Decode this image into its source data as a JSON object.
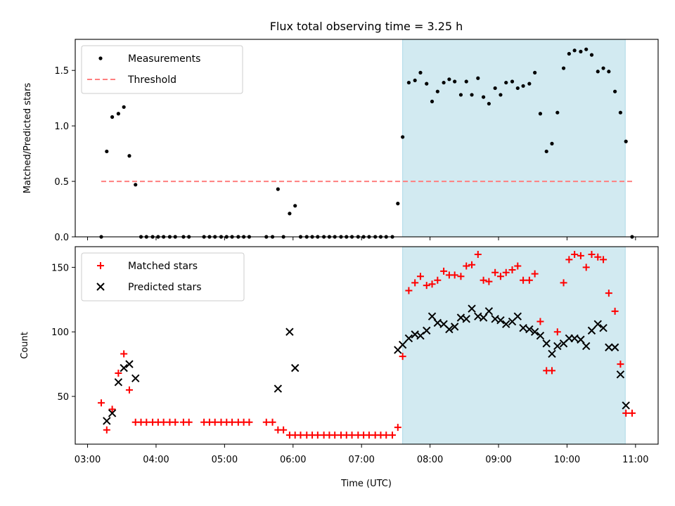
{
  "title": "Flux total observing time = 3.25 h",
  "xlabel": "Time (UTC)",
  "x_tick_labels": [
    "03:00",
    "04:00",
    "05:00",
    "06:00",
    "07:00",
    "08:00",
    "09:00",
    "10:00",
    "11:00"
  ],
  "x_tick_values": [
    3.0,
    4.0,
    5.0,
    6.0,
    7.0,
    8.0,
    9.0,
    10.0,
    11.0
  ],
  "xlim": [
    2.82,
    11.33
  ],
  "colors": {
    "highlight": "#add8e6",
    "measurement": "#000000",
    "threshold": "#ff7f7f",
    "matched": "#ff0000",
    "predicted": "#000000"
  },
  "chart_data": [
    {
      "type": "scatter",
      "ylabel": "Matched/Predicted stars",
      "ylim": [
        0,
        1.78
      ],
      "y_tick_values": [
        0.0,
        0.5,
        1.0,
        1.5
      ],
      "y_tick_labels": [
        "0.0",
        "0.5",
        "1.0",
        "1.5"
      ],
      "legend_position": "upper-left",
      "highlight_span": [
        7.6,
        10.85
      ],
      "series": [
        {
          "name": "Measurements",
          "marker": "dot",
          "points": [
            [
              3.2,
              0.0
            ],
            [
              3.28,
              0.77
            ],
            [
              3.36,
              1.08
            ],
            [
              3.45,
              1.11
            ],
            [
              3.53,
              1.17
            ],
            [
              3.61,
              0.73
            ],
            [
              3.7,
              0.47
            ],
            [
              3.78,
              0.0
            ],
            [
              3.86,
              0.0
            ],
            [
              3.95,
              0.0
            ],
            [
              4.03,
              0.0
            ],
            [
              4.11,
              0.0
            ],
            [
              4.2,
              0.0
            ],
            [
              4.28,
              0.0
            ],
            [
              4.4,
              0.0
            ],
            [
              4.48,
              0.0
            ],
            [
              4.7,
              0.0
            ],
            [
              4.78,
              0.0
            ],
            [
              4.86,
              0.0
            ],
            [
              4.95,
              0.0
            ],
            [
              5.03,
              0.0
            ],
            [
              5.11,
              0.0
            ],
            [
              5.2,
              0.0
            ],
            [
              5.28,
              0.0
            ],
            [
              5.36,
              0.0
            ],
            [
              5.61,
              0.0
            ],
            [
              5.7,
              0.0
            ],
            [
              5.78,
              0.43
            ],
            [
              5.86,
              0.0
            ],
            [
              5.95,
              0.21
            ],
            [
              6.03,
              0.28
            ],
            [
              6.11,
              0.0
            ],
            [
              6.2,
              0.0
            ],
            [
              6.28,
              0.0
            ],
            [
              6.36,
              0.0
            ],
            [
              6.45,
              0.0
            ],
            [
              6.53,
              0.0
            ],
            [
              6.61,
              0.0
            ],
            [
              6.7,
              0.0
            ],
            [
              6.78,
              0.0
            ],
            [
              6.86,
              0.0
            ],
            [
              6.95,
              0.0
            ],
            [
              7.03,
              0.0
            ],
            [
              7.11,
              0.0
            ],
            [
              7.2,
              0.0
            ],
            [
              7.28,
              0.0
            ],
            [
              7.36,
              0.0
            ],
            [
              7.45,
              0.0
            ],
            [
              7.53,
              0.3
            ],
            [
              7.6,
              0.9
            ],
            [
              7.69,
              1.39
            ],
            [
              7.78,
              1.41
            ],
            [
              7.86,
              1.48
            ],
            [
              7.95,
              1.38
            ],
            [
              8.03,
              1.22
            ],
            [
              8.11,
              1.31
            ],
            [
              8.2,
              1.39
            ],
            [
              8.28,
              1.42
            ],
            [
              8.36,
              1.4
            ],
            [
              8.45,
              1.28
            ],
            [
              8.53,
              1.4
            ],
            [
              8.61,
              1.28
            ],
            [
              8.7,
              1.43
            ],
            [
              8.78,
              1.26
            ],
            [
              8.86,
              1.2
            ],
            [
              8.95,
              1.34
            ],
            [
              9.03,
              1.28
            ],
            [
              9.11,
              1.39
            ],
            [
              9.2,
              1.4
            ],
            [
              9.28,
              1.34
            ],
            [
              9.36,
              1.36
            ],
            [
              9.45,
              1.38
            ],
            [
              9.53,
              1.48
            ],
            [
              9.61,
              1.11
            ],
            [
              9.7,
              0.77
            ],
            [
              9.78,
              0.84
            ],
            [
              9.86,
              1.12
            ],
            [
              9.95,
              1.52
            ],
            [
              10.03,
              1.65
            ],
            [
              10.11,
              1.68
            ],
            [
              10.2,
              1.67
            ],
            [
              10.28,
              1.69
            ],
            [
              10.36,
              1.64
            ],
            [
              10.45,
              1.49
            ],
            [
              10.53,
              1.52
            ],
            [
              10.61,
              1.49
            ],
            [
              10.7,
              1.31
            ],
            [
              10.78,
              1.12
            ],
            [
              10.86,
              0.86
            ],
            [
              10.95,
              0.0
            ]
          ]
        },
        {
          "name": "Threshold",
          "style": "dashed",
          "points": [
            [
              3.2,
              0.5
            ],
            [
              10.95,
              0.5
            ]
          ]
        }
      ]
    },
    {
      "type": "scatter",
      "ylabel": "Count",
      "ylim": [
        13,
        166
      ],
      "y_tick_values": [
        50,
        100,
        150
      ],
      "y_tick_labels": [
        "50",
        "100",
        "150"
      ],
      "legend_position": "upper-left",
      "highlight_span": [
        7.6,
        10.85
      ],
      "series": [
        {
          "name": "Matched stars",
          "marker": "plus",
          "points": [
            [
              3.2,
              45
            ],
            [
              3.28,
              24
            ],
            [
              3.36,
              40
            ],
            [
              3.45,
              68
            ],
            [
              3.53,
              83
            ],
            [
              3.61,
              55
            ],
            [
              3.7,
              30
            ],
            [
              3.78,
              30
            ],
            [
              3.86,
              30
            ],
            [
              3.95,
              30
            ],
            [
              4.03,
              30
            ],
            [
              4.11,
              30
            ],
            [
              4.2,
              30
            ],
            [
              4.28,
              30
            ],
            [
              4.4,
              30
            ],
            [
              4.48,
              30
            ],
            [
              4.7,
              30
            ],
            [
              4.78,
              30
            ],
            [
              4.86,
              30
            ],
            [
              4.95,
              30
            ],
            [
              5.03,
              30
            ],
            [
              5.11,
              30
            ],
            [
              5.2,
              30
            ],
            [
              5.28,
              30
            ],
            [
              5.36,
              30
            ],
            [
              5.61,
              30
            ],
            [
              5.7,
              30
            ],
            [
              5.78,
              24
            ],
            [
              5.86,
              24
            ],
            [
              5.95,
              20
            ],
            [
              6.03,
              20
            ],
            [
              6.11,
              20
            ],
            [
              6.2,
              20
            ],
            [
              6.28,
              20
            ],
            [
              6.36,
              20
            ],
            [
              6.45,
              20
            ],
            [
              6.53,
              20
            ],
            [
              6.61,
              20
            ],
            [
              6.7,
              20
            ],
            [
              6.78,
              20
            ],
            [
              6.86,
              20
            ],
            [
              6.95,
              20
            ],
            [
              7.03,
              20
            ],
            [
              7.11,
              20
            ],
            [
              7.2,
              20
            ],
            [
              7.28,
              20
            ],
            [
              7.36,
              20
            ],
            [
              7.45,
              20
            ],
            [
              7.53,
              26
            ],
            [
              7.6,
              81
            ],
            [
              7.69,
              132
            ],
            [
              7.78,
              138
            ],
            [
              7.86,
              143
            ],
            [
              7.95,
              136
            ],
            [
              8.03,
              137
            ],
            [
              8.11,
              140
            ],
            [
              8.2,
              147
            ],
            [
              8.28,
              144
            ],
            [
              8.36,
              144
            ],
            [
              8.45,
              143
            ],
            [
              8.53,
              151
            ],
            [
              8.61,
              152
            ],
            [
              8.7,
              160
            ],
            [
              8.78,
              140
            ],
            [
              8.86,
              139
            ],
            [
              8.95,
              146
            ],
            [
              9.03,
              143
            ],
            [
              9.11,
              146
            ],
            [
              9.2,
              148
            ],
            [
              9.28,
              151
            ],
            [
              9.36,
              140
            ],
            [
              9.45,
              140
            ],
            [
              9.53,
              145
            ],
            [
              9.61,
              108
            ],
            [
              9.7,
              70
            ],
            [
              9.78,
              70
            ],
            [
              9.86,
              100
            ],
            [
              9.95,
              138
            ],
            [
              10.03,
              156
            ],
            [
              10.11,
              160
            ],
            [
              10.2,
              159
            ],
            [
              10.28,
              150
            ],
            [
              10.36,
              160
            ],
            [
              10.45,
              158
            ],
            [
              10.53,
              156
            ],
            [
              10.61,
              130
            ],
            [
              10.7,
              116
            ],
            [
              10.78,
              75
            ],
            [
              10.86,
              37
            ],
            [
              10.95,
              37
            ]
          ]
        },
        {
          "name": "Predicted stars",
          "marker": "x",
          "points": [
            [
              3.28,
              31
            ],
            [
              3.36,
              37
            ],
            [
              3.45,
              61
            ],
            [
              3.53,
              72
            ],
            [
              3.61,
              75
            ],
            [
              3.7,
              64
            ],
            [
              5.78,
              56
            ],
            [
              5.95,
              100
            ],
            [
              6.03,
              72
            ],
            [
              7.53,
              86
            ],
            [
              7.6,
              90
            ],
            [
              7.69,
              95
            ],
            [
              7.78,
              98
            ],
            [
              7.86,
              97
            ],
            [
              7.95,
              101
            ],
            [
              8.03,
              112
            ],
            [
              8.11,
              107
            ],
            [
              8.2,
              106
            ],
            [
              8.28,
              102
            ],
            [
              8.36,
              104
            ],
            [
              8.45,
              111
            ],
            [
              8.53,
              110
            ],
            [
              8.61,
              118
            ],
            [
              8.7,
              112
            ],
            [
              8.78,
              111
            ],
            [
              8.86,
              116
            ],
            [
              8.95,
              110
            ],
            [
              9.03,
              109
            ],
            [
              9.11,
              106
            ],
            [
              9.2,
              108
            ],
            [
              9.28,
              112
            ],
            [
              9.36,
              103
            ],
            [
              9.45,
              102
            ],
            [
              9.53,
              100
            ],
            [
              9.61,
              97
            ],
            [
              9.7,
              91
            ],
            [
              9.78,
              83
            ],
            [
              9.86,
              89
            ],
            [
              9.95,
              91
            ],
            [
              10.03,
              95
            ],
            [
              10.11,
              95
            ],
            [
              10.2,
              94
            ],
            [
              10.28,
              89
            ],
            [
              10.36,
              101
            ],
            [
              10.45,
              106
            ],
            [
              10.53,
              103
            ],
            [
              10.61,
              88
            ],
            [
              10.7,
              88
            ],
            [
              10.78,
              67
            ],
            [
              10.86,
              43
            ]
          ]
        }
      ]
    }
  ]
}
